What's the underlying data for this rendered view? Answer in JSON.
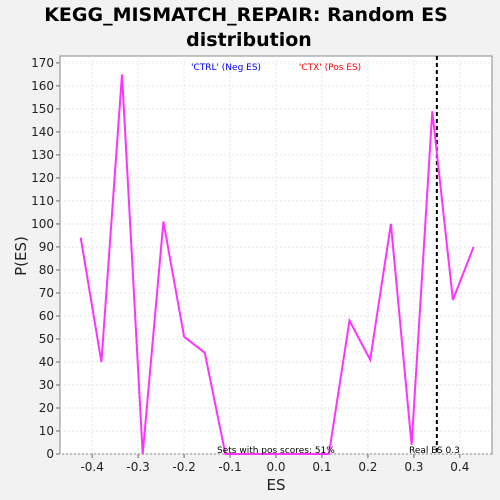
{
  "title_line1": "KEGG_MISMATCH_REPAIR: Random ES",
  "title_line2": "distribution",
  "legend": {
    "neg": {
      "text": "'CTRL' (Neg ES)",
      "color": "#0000ff"
    },
    "pos": {
      "text": "'CTX' (Pos ES)",
      "color": "#ff0000"
    }
  },
  "annotations": {
    "pos_scores": "Sets with pos scores: 51%",
    "real_es": "Real ES 0.3"
  },
  "colors": {
    "line": "#ff33ff",
    "real_es_line": "#000000",
    "plot_bg": "#ffffff",
    "grid": "#e6e6e6"
  },
  "chart_data": {
    "type": "line",
    "title": "KEGG_MISMATCH_REPAIR: Random ES distribution",
    "xlabel": "ES",
    "ylabel": "P(ES)",
    "xlim": [
      -0.47,
      0.47
    ],
    "ylim": [
      0,
      173
    ],
    "xticks": [
      -0.4,
      -0.3,
      -0.2,
      -0.1,
      0.0,
      0.1,
      0.2,
      0.3,
      0.4
    ],
    "xtick_labels": [
      "-0.4",
      "-0.3",
      "-0.2",
      "-0.1",
      "0.0",
      "0.1",
      "0.2",
      "0.3",
      "0.4"
    ],
    "yticks": [
      0,
      10,
      20,
      30,
      40,
      50,
      60,
      70,
      80,
      90,
      100,
      110,
      120,
      130,
      140,
      150,
      160,
      170
    ],
    "grid": true,
    "real_es": 0.35,
    "series": [
      {
        "x": [
          -0.425,
          -0.38,
          -0.335,
          -0.29,
          -0.245,
          -0.2,
          -0.155,
          -0.11,
          -0.065,
          -0.02,
          0.025,
          0.07,
          0.115,
          0.16,
          0.205,
          0.25,
          0.295,
          0.34,
          0.385,
          0.43
        ],
        "y": [
          94,
          40,
          165,
          0,
          101,
          51,
          44,
          0,
          0,
          0,
          0,
          0,
          0,
          58,
          41,
          100,
          4,
          149,
          67,
          90
        ]
      }
    ]
  }
}
